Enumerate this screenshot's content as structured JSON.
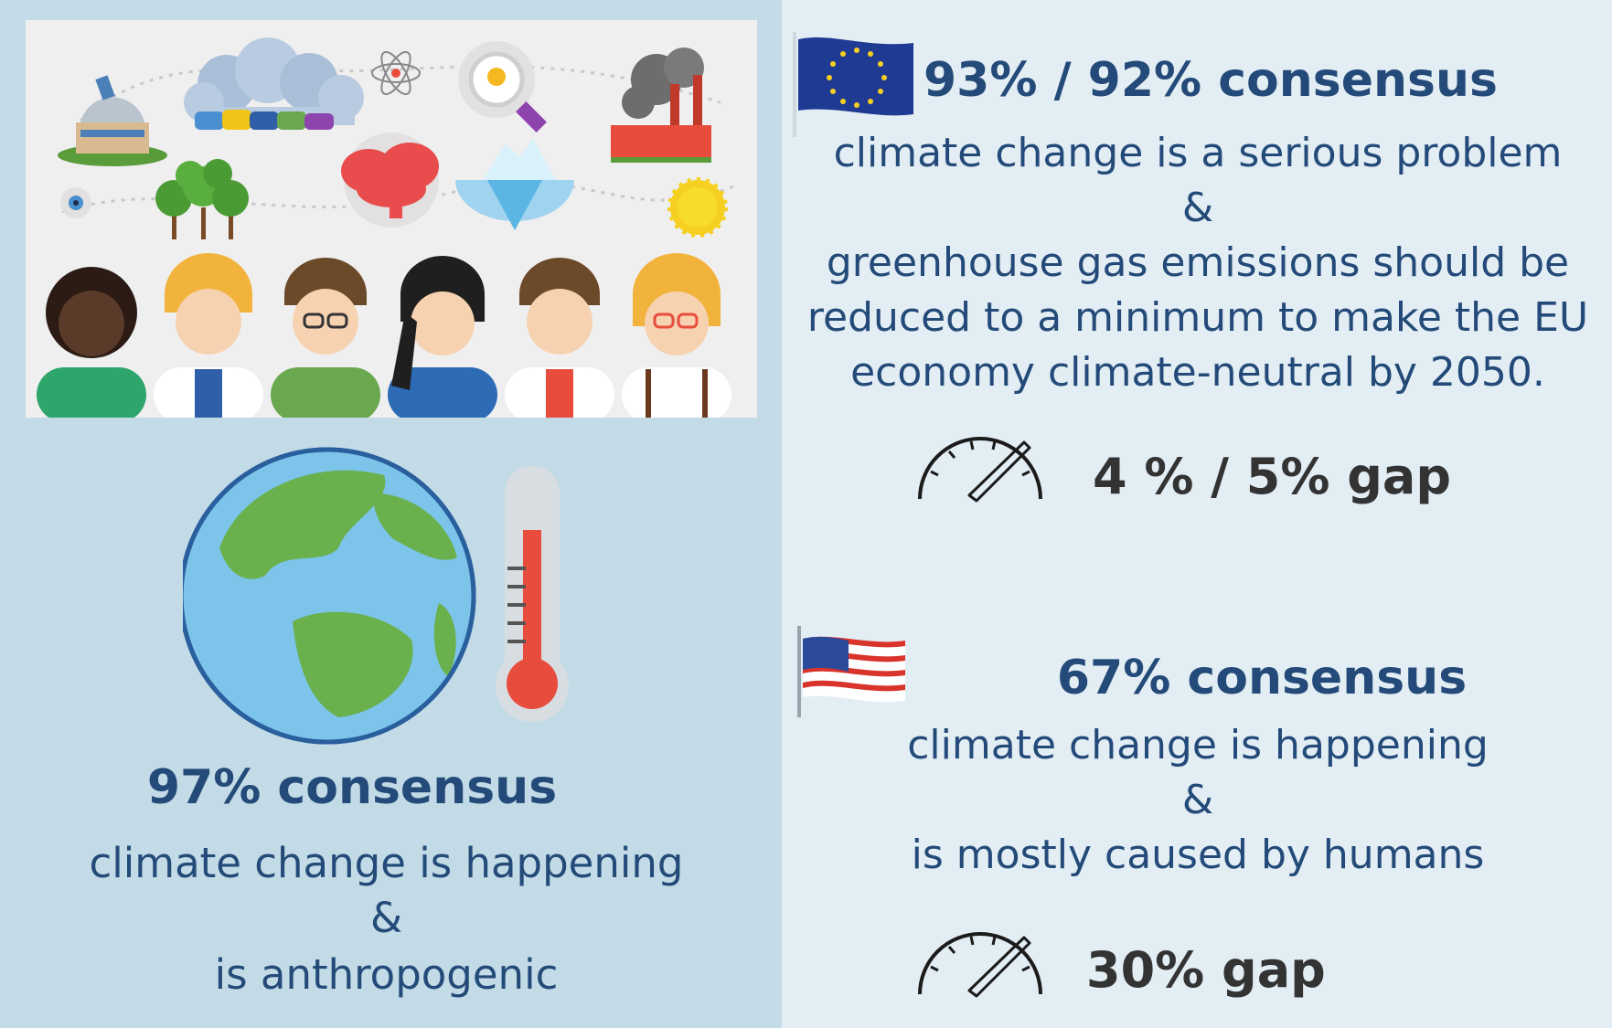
{
  "world": {
    "heading": "97% consensus",
    "lines": [
      "climate change is happening",
      "&",
      "is anthropogenic"
    ]
  },
  "eu": {
    "heading": "93% / 92% consensus",
    "lines": [
      "climate change is a serious problem",
      "&",
      "greenhouse gas emissions should be",
      "reduced to a minimum to make the EU",
      "economy climate-neutral by 2050."
    ],
    "gap": "4 % / 5% gap"
  },
  "us": {
    "heading": "67% consensus",
    "lines": [
      "climate change is happening",
      "&",
      "is mostly caused by humans"
    ],
    "gap": "30% gap"
  },
  "colors": {
    "left_panel": "#c3dbe6",
    "right_panel": "#e3edf4",
    "heading": "#234a78",
    "gap_text": "#333333"
  },
  "icons": [
    "scientists-illustration",
    "earth-globe-icon",
    "thermometer-icon",
    "eu-flag-icon",
    "us-flag-icon",
    "speedometer-icon"
  ]
}
